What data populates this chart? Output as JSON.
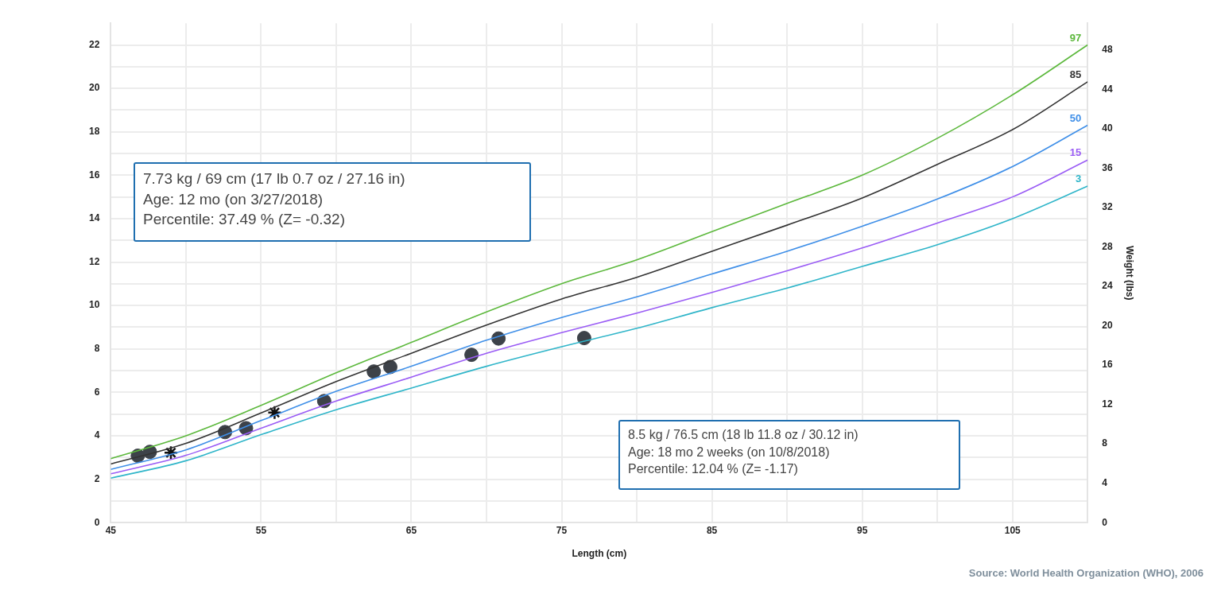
{
  "chart_data": {
    "type": "line",
    "xlabel": "Length (cm)",
    "y2label": "Weight (lbs)",
    "x": [
      45,
      50,
      55,
      60,
      65,
      70,
      75,
      80,
      85,
      90,
      95,
      100,
      105,
      110
    ],
    "series": [
      {
        "name": "97",
        "color": "#5cb83c",
        "marker": "none",
        "values": [
          2.95,
          4.0,
          5.4,
          6.9,
          8.3,
          9.7,
          11.0,
          12.1,
          13.4,
          14.7,
          16.0,
          17.7,
          19.7,
          22.0
        ]
      },
      {
        "name": "85",
        "color": "#333333",
        "marker": "none",
        "values": [
          2.7,
          3.65,
          5.05,
          6.5,
          7.8,
          9.1,
          10.3,
          11.3,
          12.5,
          13.7,
          14.95,
          16.5,
          18.1,
          20.3
        ]
      },
      {
        "name": "50",
        "color": "#3f8fe8",
        "marker": "none",
        "values": [
          2.45,
          3.35,
          4.7,
          6.05,
          7.2,
          8.4,
          9.45,
          10.4,
          11.45,
          12.5,
          13.65,
          14.9,
          16.4,
          18.3
        ]
      },
      {
        "name": "15",
        "color": "#9a5cf5",
        "marker": "none",
        "values": [
          2.25,
          3.1,
          4.35,
          5.6,
          6.7,
          7.8,
          8.75,
          9.65,
          10.6,
          11.6,
          12.65,
          13.8,
          15.0,
          16.7
        ]
      },
      {
        "name": "3",
        "color": "#2fb5c9",
        "marker": "none",
        "values": [
          2.05,
          2.85,
          4.05,
          5.2,
          6.2,
          7.2,
          8.1,
          8.95,
          9.9,
          10.8,
          11.8,
          12.8,
          14.0,
          15.5
        ]
      },
      {
        "color": "#3d4249",
        "type": "scatter",
        "marker": "circle",
        "x": [
          46.8,
          47.6,
          52.6,
          54.0,
          59.2,
          62.5,
          63.6,
          69,
          70.8,
          76.5
        ],
        "values": [
          3.08,
          3.26,
          4.17,
          4.35,
          5.6,
          6.96,
          7.17,
          7.73,
          8.48,
          8.5
        ]
      },
      {
        "color": "#111111",
        "type": "scatter",
        "marker": "cross",
        "x": [
          49.0,
          55.9
        ],
        "values": [
          3.22,
          5.07
        ]
      }
    ],
    "xlim": [
      45,
      110
    ],
    "xticks": [
      45,
      {
        "value": 50,
        "label": null
      },
      55,
      {
        "value": 60,
        "label": null
      },
      65,
      {
        "value": 70,
        "label": null
      },
      75,
      {
        "value": 80,
        "label": null
      },
      85,
      {
        "value": 90,
        "label": null
      },
      95,
      {
        "value": 100,
        "label": null
      },
      105
    ],
    "ylim": [
      0,
      23
    ],
    "yticks": [
      0,
      {
        "value": 1,
        "label": null
      },
      2,
      {
        "value": 3,
        "label": null
      },
      4,
      {
        "value": 5,
        "label": null
      },
      6,
      {
        "value": 7,
        "label": null
      },
      8,
      {
        "value": 9,
        "label": null
      },
      10,
      {
        "value": 11,
        "label": null
      },
      12,
      {
        "value": 13,
        "label": null
      },
      14,
      {
        "value": 15,
        "label": null
      },
      16,
      {
        "value": 17,
        "label": null
      },
      18,
      {
        "value": 19,
        "label": null
      },
      20,
      {
        "value": 21,
        "label": null
      },
      22
    ],
    "y2lim": [
      0,
      50.7
    ],
    "y2ticks": [
      0,
      4,
      8,
      12,
      16,
      20,
      24,
      28,
      32,
      36,
      40,
      44,
      48
    ],
    "grid": true,
    "legend": false,
    "annotations": [
      "7.73 kg / 69 cm (17 lb 0.7 oz / 27.16 in)\nAge: 12 mo (on 3/27/2018)\nPercentile: 37.49 % (Z= -0.32)",
      "8.5 kg / 76.5 cm (18 lb 11.8 oz / 30.12 in)\nAge: 18 mo 2 weeks (on 10/8/2018)\nPercentile: 12.04 % (Z= -1.17)",
      "Source: World Health Organization (WHO), 2006"
    ]
  }
}
